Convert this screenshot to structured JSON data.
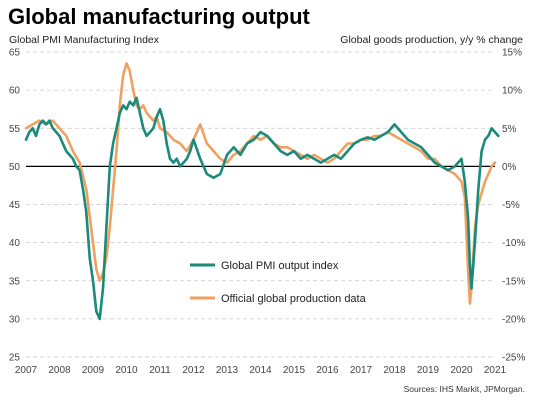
{
  "chart_data": {
    "type": "line",
    "title": "Global manufacturing output",
    "left_axis_label": "Global PMI Manufacturing Index",
    "right_axis_label": "Global goods production, y/y % change",
    "source": "Sources: IHS Markit, JPMorgan.",
    "x_ticks": [
      "2007",
      "2008",
      "2009",
      "2010",
      "2011",
      "2012",
      "2013",
      "2014",
      "2015",
      "2016",
      "2017",
      "2018",
      "2019",
      "2020",
      "2021"
    ],
    "left_ylim": [
      25,
      65
    ],
    "left_ticks": [
      "25",
      "30",
      "35",
      "40",
      "45",
      "50",
      "55",
      "60",
      "65"
    ],
    "right_ylim": [
      -25,
      15
    ],
    "right_ticks": [
      "-25%",
      "-20%",
      "-15%",
      "-10%",
      "-5%",
      "0%",
      "5%",
      "10%",
      "15%"
    ],
    "grid": "horizontal dashed",
    "reference_line": 50,
    "legend": "center",
    "series": [
      {
        "name": "Global PMI output index",
        "axis": "left",
        "color": "#1a8a7a",
        "x": [
          2007.0,
          2007.1,
          2007.2,
          2007.3,
          2007.4,
          2007.5,
          2007.6,
          2007.7,
          2007.8,
          2007.9,
          2008.0,
          2008.1,
          2008.2,
          2008.3,
          2008.4,
          2008.5,
          2008.6,
          2008.7,
          2008.8,
          2008.9,
          2009.0,
          2009.1,
          2009.2,
          2009.3,
          2009.4,
          2009.5,
          2009.6,
          2009.7,
          2009.8,
          2009.9,
          2010.0,
          2010.1,
          2010.2,
          2010.3,
          2010.4,
          2010.5,
          2010.6,
          2010.7,
          2010.8,
          2010.9,
          2011.0,
          2011.1,
          2011.2,
          2011.3,
          2011.4,
          2011.5,
          2011.6,
          2011.7,
          2011.8,
          2011.9,
          2012.0,
          2012.2,
          2012.4,
          2012.6,
          2012.8,
          2013.0,
          2013.2,
          2013.4,
          2013.6,
          2013.8,
          2014.0,
          2014.2,
          2014.4,
          2014.6,
          2014.8,
          2015.0,
          2015.2,
          2015.4,
          2015.6,
          2015.8,
          2016.0,
          2016.2,
          2016.4,
          2016.6,
          2016.8,
          2017.0,
          2017.2,
          2017.4,
          2017.6,
          2017.8,
          2018.0,
          2018.2,
          2018.4,
          2018.6,
          2018.8,
          2019.0,
          2019.2,
          2019.4,
          2019.6,
          2019.8,
          2020.0,
          2020.1,
          2020.2,
          2020.25,
          2020.3,
          2020.4,
          2020.5,
          2020.6,
          2020.7,
          2020.8,
          2020.9,
          2021.0,
          2021.1
        ],
        "values": [
          53.5,
          54.5,
          55.0,
          54.0,
          55.5,
          56.0,
          55.5,
          56.0,
          55.0,
          54.5,
          54.0,
          53.0,
          52.0,
          51.5,
          51.0,
          50.0,
          49.5,
          47.0,
          44.0,
          38.0,
          35.0,
          31.0,
          30.0,
          34.0,
          42.0,
          50.0,
          53.0,
          55.0,
          57.0,
          58.0,
          57.5,
          58.5,
          58.0,
          59.0,
          57.0,
          55.0,
          54.0,
          54.5,
          55.0,
          56.5,
          57.5,
          56.0,
          53.0,
          51.0,
          50.5,
          51.0,
          50.0,
          50.5,
          51.0,
          52.0,
          53.5,
          51.0,
          49.0,
          48.5,
          49.0,
          51.5,
          52.5,
          51.5,
          53.0,
          53.5,
          54.5,
          54.0,
          53.0,
          52.0,
          51.5,
          52.0,
          51.0,
          51.5,
          51.0,
          50.5,
          51.0,
          51.5,
          51.0,
          52.0,
          53.0,
          53.5,
          53.8,
          53.5,
          54.0,
          54.5,
          55.5,
          54.5,
          53.5,
          53.0,
          52.5,
          51.5,
          50.5,
          50.0,
          49.5,
          50.0,
          51.0,
          48.0,
          43.0,
          37.0,
          34.0,
          40.0,
          47.0,
          52.0,
          53.5,
          54.0,
          55.0,
          54.5,
          54.0
        ]
      },
      {
        "name": "Official global production data",
        "axis": "right",
        "color": "#f0a060",
        "x": [
          2007.0,
          2007.2,
          2007.4,
          2007.6,
          2007.8,
          2008.0,
          2008.2,
          2008.4,
          2008.6,
          2008.8,
          2009.0,
          2009.1,
          2009.2,
          2009.3,
          2009.4,
          2009.5,
          2009.6,
          2009.7,
          2009.8,
          2009.9,
          2010.0,
          2010.1,
          2010.2,
          2010.3,
          2010.4,
          2010.5,
          2010.6,
          2010.7,
          2010.8,
          2010.9,
          2011.0,
          2011.2,
          2011.4,
          2011.6,
          2011.8,
          2012.0,
          2012.2,
          2012.4,
          2012.6,
          2012.8,
          2013.0,
          2013.2,
          2013.4,
          2013.6,
          2013.8,
          2014.0,
          2014.2,
          2014.4,
          2014.6,
          2014.8,
          2015.0,
          2015.2,
          2015.4,
          2015.6,
          2015.8,
          2016.0,
          2016.2,
          2016.4,
          2016.6,
          2016.8,
          2017.0,
          2017.2,
          2017.4,
          2017.6,
          2017.8,
          2018.0,
          2018.2,
          2018.4,
          2018.6,
          2018.8,
          2019.0,
          2019.2,
          2019.4,
          2019.6,
          2019.8,
          2020.0,
          2020.1,
          2020.2,
          2020.25,
          2020.3,
          2020.35,
          2020.4,
          2020.5,
          2020.6,
          2020.7,
          2020.8,
          2020.9,
          2021.0
        ],
        "values": [
          5.0,
          5.5,
          6.0,
          5.5,
          6.0,
          5.0,
          4.0,
          2.0,
          0.5,
          -3.0,
          -10.0,
          -13.5,
          -15.0,
          -14.0,
          -12.0,
          -8.0,
          -3.0,
          2.0,
          8.0,
          12.0,
          13.5,
          12.5,
          10.0,
          8.0,
          7.5,
          8.0,
          7.0,
          6.5,
          6.0,
          6.5,
          5.0,
          4.5,
          3.5,
          3.0,
          2.0,
          3.5,
          5.5,
          3.0,
          2.0,
          1.0,
          0.5,
          1.5,
          2.0,
          3.0,
          4.0,
          3.5,
          4.0,
          3.0,
          2.5,
          2.5,
          2.0,
          1.5,
          1.0,
          1.5,
          1.0,
          0.5,
          1.0,
          2.0,
          3.0,
          3.0,
          3.5,
          3.5,
          4.0,
          4.0,
          4.5,
          4.0,
          3.5,
          3.0,
          2.5,
          2.0,
          1.0,
          1.0,
          0.0,
          -0.5,
          -1.0,
          -2.0,
          -4.0,
          -14.0,
          -18.0,
          -16.0,
          -12.0,
          -8.0,
          -5.0,
          -3.5,
          -2.0,
          -1.0,
          0.0,
          0.5
        ]
      }
    ]
  }
}
